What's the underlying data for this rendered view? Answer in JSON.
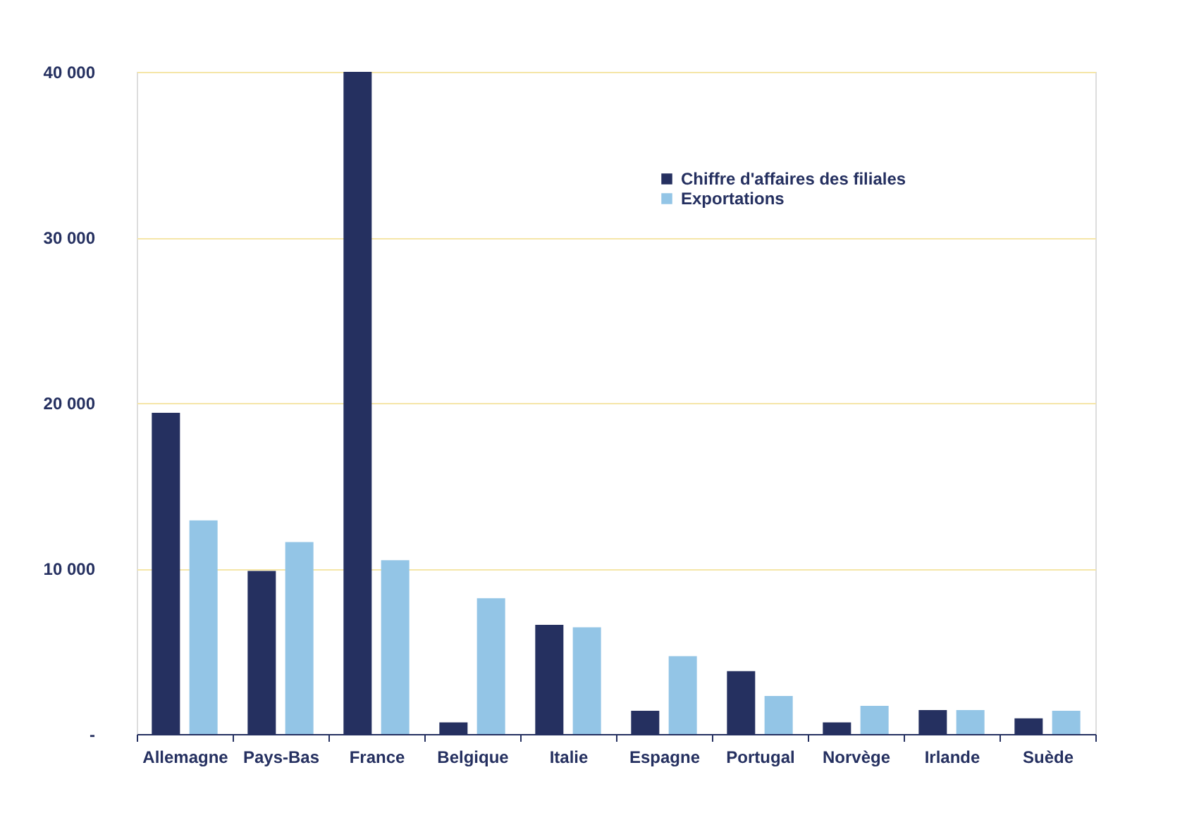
{
  "chart_data": {
    "type": "bar",
    "categories": [
      "Allemagne",
      "Pays-Bas",
      "France",
      "Belgique",
      "Italie",
      "Espagne",
      "Portugal",
      "Norvège",
      "Irlande",
      "Suède"
    ],
    "series": [
      {
        "name": "Chiffre d'affaires des filiales",
        "color": "#253060",
        "values": [
          19400,
          9850,
          40000,
          700,
          6600,
          1400,
          3800,
          700,
          1450,
          950
        ]
      },
      {
        "name": "Exportations",
        "color": "#93c5e6",
        "values": [
          12900,
          11600,
          10500,
          8200,
          6450,
          4700,
          2300,
          1700,
          1450,
          1400
        ]
      }
    ],
    "ylim": [
      0,
      40000
    ],
    "yticks": [
      {
        "value": 0,
        "label": "-"
      },
      {
        "value": 10000,
        "label": "10 000"
      },
      {
        "value": 20000,
        "label": "20 000"
      },
      {
        "value": 30000,
        "label": "30 000"
      },
      {
        "value": 40000,
        "label": "40 000"
      }
    ],
    "grid": "y",
    "legend": "top right"
  }
}
